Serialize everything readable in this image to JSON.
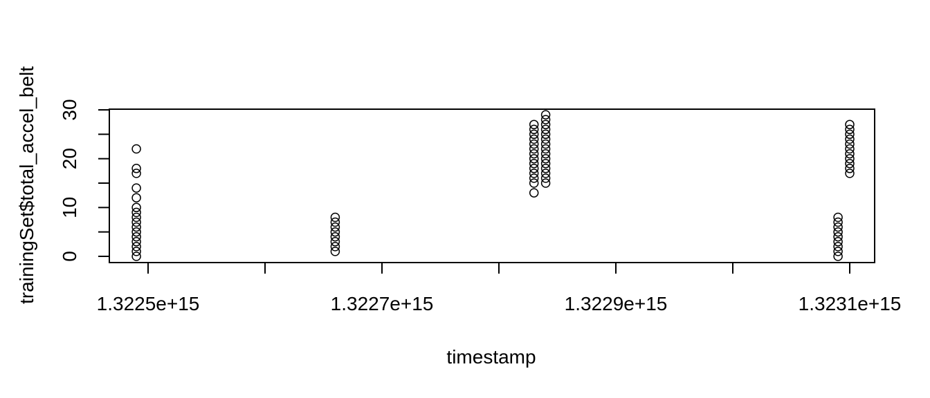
{
  "chart_data": {
    "type": "scatter",
    "title": "",
    "xlabel": "timestamp",
    "ylabel": "trainingSet$total_accel_belt",
    "xlim": [
      1322470000000000.0,
      1323120000000000.0
    ],
    "ylim": [
      0,
      30
    ],
    "x_ticks": [
      1322500000000000.0,
      1322600000000000.0,
      1322700000000000.0,
      1322800000000000.0,
      1322900000000000.0,
      1323000000000000.0,
      1323100000000000.0
    ],
    "x_tick_labels": [
      "1.3225e+15",
      "",
      "1.3227e+15",
      "",
      "1.3229e+15",
      "",
      "1.3231e+15"
    ],
    "y_ticks": [
      0,
      5,
      10,
      15,
      20,
      25,
      30
    ],
    "y_tick_labels": [
      "0",
      "",
      "10",
      "",
      "20",
      "",
      "30"
    ],
    "grid": false,
    "legend": "none",
    "series": [
      {
        "points": [
          [
            1322490000000000.0,
            0
          ],
          [
            1322490000000000.0,
            1
          ],
          [
            1322490000000000.0,
            2
          ],
          [
            1322490000000000.0,
            3
          ],
          [
            1322490000000000.0,
            4
          ],
          [
            1322490000000000.0,
            5
          ],
          [
            1322490000000000.0,
            6
          ],
          [
            1322490000000000.0,
            7
          ],
          [
            1322490000000000.0,
            8
          ],
          [
            1322490000000000.0,
            9
          ],
          [
            1322490000000000.0,
            10
          ],
          [
            1322490000000000.0,
            12
          ],
          [
            1322490000000000.0,
            14
          ],
          [
            1322490000000000.0,
            17
          ],
          [
            1322490000000000.0,
            18
          ],
          [
            1322490000000000.0,
            22
          ],
          [
            1322660000000000.0,
            1
          ],
          [
            1322660000000000.0,
            2
          ],
          [
            1322660000000000.0,
            3
          ],
          [
            1322660000000000.0,
            4
          ],
          [
            1322660000000000.0,
            5
          ],
          [
            1322660000000000.0,
            6
          ],
          [
            1322660000000000.0,
            7
          ],
          [
            1322660000000000.0,
            8
          ],
          [
            1322830000000000.0,
            13
          ],
          [
            1322830000000000.0,
            15
          ],
          [
            1322830000000000.0,
            16
          ],
          [
            1322830000000000.0,
            17
          ],
          [
            1322830000000000.0,
            18
          ],
          [
            1322830000000000.0,
            19
          ],
          [
            1322830000000000.0,
            20
          ],
          [
            1322830000000000.0,
            21
          ],
          [
            1322830000000000.0,
            22
          ],
          [
            1322830000000000.0,
            23
          ],
          [
            1322830000000000.0,
            24
          ],
          [
            1322830000000000.0,
            25
          ],
          [
            1322830000000000.0,
            26
          ],
          [
            1322830000000000.0,
            27
          ],
          [
            1322840000000000.0,
            15
          ],
          [
            1322840000000000.0,
            16
          ],
          [
            1322840000000000.0,
            17
          ],
          [
            1322840000000000.0,
            18
          ],
          [
            1322840000000000.0,
            19
          ],
          [
            1322840000000000.0,
            20
          ],
          [
            1322840000000000.0,
            21
          ],
          [
            1322840000000000.0,
            22
          ],
          [
            1322840000000000.0,
            23
          ],
          [
            1322840000000000.0,
            24
          ],
          [
            1322840000000000.0,
            25
          ],
          [
            1322840000000000.0,
            26
          ],
          [
            1322840000000000.0,
            27
          ],
          [
            1322840000000000.0,
            28
          ],
          [
            1322840000000000.0,
            29
          ],
          [
            1323090000000000.0,
            0
          ],
          [
            1323090000000000.0,
            1
          ],
          [
            1323090000000000.0,
            2
          ],
          [
            1323090000000000.0,
            3
          ],
          [
            1323090000000000.0,
            4
          ],
          [
            1323090000000000.0,
            5
          ],
          [
            1323090000000000.0,
            6
          ],
          [
            1323090000000000.0,
            7
          ],
          [
            1323090000000000.0,
            8
          ],
          [
            1323100000000000.0,
            17
          ],
          [
            1323100000000000.0,
            18
          ],
          [
            1323100000000000.0,
            19
          ],
          [
            1323100000000000.0,
            20
          ],
          [
            1323100000000000.0,
            21
          ],
          [
            1323100000000000.0,
            22
          ],
          [
            1323100000000000.0,
            23
          ],
          [
            1323100000000000.0,
            24
          ],
          [
            1323100000000000.0,
            25
          ],
          [
            1323100000000000.0,
            26
          ],
          [
            1323100000000000.0,
            27
          ]
        ]
      }
    ]
  }
}
